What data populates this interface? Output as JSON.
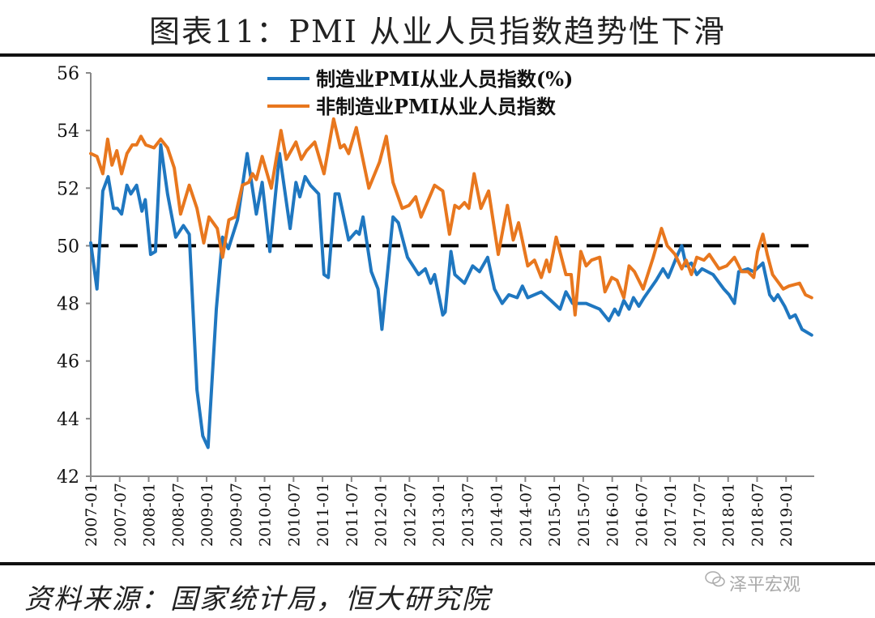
{
  "header": {
    "title": "图表11：PMI 从业人员指数趋势性下滑"
  },
  "footer": {
    "source": "资料来源：国家统计局，恒大研究院",
    "watermark": "泽平宏观"
  },
  "chart_data": {
    "type": "line",
    "title": "图表11：PMI 从业人员指数趋势性下滑",
    "xlabel": "",
    "ylabel": "",
    "x_unit": "months since 2007-01",
    "ylim": [
      42,
      56
    ],
    "yticks": [
      "42",
      "44",
      "46",
      "48",
      "50",
      "52",
      "54",
      "56"
    ],
    "xticks": [
      "2007-01",
      "2007-07",
      "2008-01",
      "2008-07",
      "2009-01",
      "2009-07",
      "2010-01",
      "2010-07",
      "2011-01",
      "2011-07",
      "2012-01",
      "2012-07",
      "2013-01",
      "2013-07",
      "2014-01",
      "2014-07",
      "2015-01",
      "2015-07",
      "2016-01",
      "2016-07",
      "2017-01",
      "2017-07",
      "2018-01",
      "2018-07",
      "2019-01"
    ],
    "reference_line": {
      "y": 50,
      "style": "dashed",
      "color": "#000000"
    },
    "legend_position": "top-center",
    "series": [
      {
        "name": "制造业PMI从业人员指数(%)",
        "color": "#1f77c0",
        "points": [
          [
            0,
            50.1
          ],
          [
            1.3,
            48.5
          ],
          [
            2.5,
            51.9
          ],
          [
            3.6,
            52.4
          ],
          [
            4.7,
            51.3
          ],
          [
            5.5,
            51.3
          ],
          [
            6.4,
            51.1
          ],
          [
            7.5,
            52.1
          ],
          [
            8.3,
            51.8
          ],
          [
            9.5,
            52.1
          ],
          [
            10.6,
            51.2
          ],
          [
            11.3,
            51.6
          ],
          [
            12.4,
            49.7
          ],
          [
            13.4,
            49.8
          ],
          [
            14.5,
            53.5
          ],
          [
            15.9,
            51.8
          ],
          [
            17.6,
            50.3
          ],
          [
            19.2,
            50.7
          ],
          [
            20.4,
            50.4
          ],
          [
            22,
            45.0
          ],
          [
            23.2,
            43.4
          ],
          [
            24.3,
            43.0
          ],
          [
            26,
            47.8
          ],
          [
            27.3,
            50.3
          ],
          [
            28.5,
            49.9
          ],
          [
            30.4,
            50.9
          ],
          [
            32.4,
            53.2
          ],
          [
            34.3,
            51.1
          ],
          [
            35.5,
            52.2
          ],
          [
            37.1,
            49.8
          ],
          [
            39.1,
            53.2
          ],
          [
            41.3,
            50.6
          ],
          [
            42.5,
            52.2
          ],
          [
            43.3,
            51.7
          ],
          [
            44.4,
            52.4
          ],
          [
            45.5,
            52.1
          ],
          [
            47.2,
            51.8
          ],
          [
            48.3,
            49.0
          ],
          [
            49.2,
            48.9
          ],
          [
            50.6,
            51.8
          ],
          [
            51.4,
            51.8
          ],
          [
            53.4,
            50.2
          ],
          [
            55,
            50.5
          ],
          [
            55.6,
            50.4
          ],
          [
            56.4,
            51.0
          ],
          [
            58.1,
            49.1
          ],
          [
            59.5,
            48.5
          ],
          [
            60.3,
            47.1
          ],
          [
            62.6,
            51.0
          ],
          [
            63.7,
            50.8
          ],
          [
            65.6,
            49.6
          ],
          [
            67.9,
            49.0
          ],
          [
            69.3,
            49.2
          ],
          [
            70.4,
            48.7
          ],
          [
            71.2,
            49.0
          ],
          [
            72.9,
            47.6
          ],
          [
            73.4,
            47.7
          ],
          [
            74.6,
            49.8
          ],
          [
            75.4,
            49.0
          ],
          [
            77.4,
            48.7
          ],
          [
            79.1,
            49.3
          ],
          [
            80.5,
            49.1
          ],
          [
            82.2,
            49.6
          ],
          [
            83.6,
            48.5
          ],
          [
            85.2,
            48.0
          ],
          [
            86.6,
            48.3
          ],
          [
            88.3,
            48.2
          ],
          [
            89.4,
            48.6
          ],
          [
            90.5,
            48.2
          ],
          [
            93.3,
            48.4
          ],
          [
            95.3,
            48.1
          ],
          [
            97.2,
            47.8
          ],
          [
            98.4,
            48.4
          ],
          [
            99.8,
            48.0
          ],
          [
            102.6,
            48.0
          ],
          [
            105.4,
            47.8
          ],
          [
            107.3,
            47.4
          ],
          [
            108.5,
            47.8
          ],
          [
            109.3,
            47.6
          ],
          [
            110.4,
            48.1
          ],
          [
            111.5,
            47.8
          ],
          [
            112.4,
            48.2
          ],
          [
            113.5,
            47.9
          ],
          [
            114.6,
            48.2
          ],
          [
            117.1,
            48.8
          ],
          [
            118.5,
            49.2
          ],
          [
            119.6,
            48.9
          ],
          [
            121.3,
            49.6
          ],
          [
            122.4,
            50.0
          ],
          [
            123.3,
            49.3
          ],
          [
            124.4,
            49.4
          ],
          [
            125.5,
            49.0
          ],
          [
            126.6,
            49.2
          ],
          [
            128.9,
            49.0
          ],
          [
            131.1,
            48.5
          ],
          [
            132.2,
            48.3
          ],
          [
            133.3,
            48.0
          ],
          [
            134.2,
            49.1
          ],
          [
            136.1,
            49.2
          ],
          [
            137.3,
            49.1
          ],
          [
            139.2,
            49.4
          ],
          [
            140.6,
            48.3
          ],
          [
            141.5,
            48.1
          ],
          [
            142.3,
            48.3
          ],
          [
            143.7,
            47.9
          ],
          [
            144.8,
            47.5
          ],
          [
            145.9,
            47.6
          ],
          [
            147.3,
            47.1
          ],
          [
            149.3,
            46.9
          ]
        ]
      },
      {
        "name": "非制造业PMI从业人员指数",
        "color": "#e8771e",
        "points": [
          [
            0,
            53.2
          ],
          [
            1.3,
            53.1
          ],
          [
            2.5,
            52.5
          ],
          [
            3.5,
            53.7
          ],
          [
            4.4,
            52.8
          ],
          [
            5.4,
            53.3
          ],
          [
            6.4,
            52.5
          ],
          [
            7.5,
            53.2
          ],
          [
            8.6,
            53.5
          ],
          [
            9.5,
            53.5
          ],
          [
            10.4,
            53.8
          ],
          [
            11.4,
            53.5
          ],
          [
            13.1,
            53.4
          ],
          [
            14.5,
            53.7
          ],
          [
            15.9,
            53.4
          ],
          [
            17.3,
            52.7
          ],
          [
            18.6,
            51.1
          ],
          [
            20.4,
            52.1
          ],
          [
            22,
            51.3
          ],
          [
            23.4,
            50.1
          ],
          [
            24.5,
            51.0
          ],
          [
            26.2,
            50.6
          ],
          [
            27.3,
            49.6
          ],
          [
            28.6,
            50.9
          ],
          [
            29.9,
            51.0
          ],
          [
            31.4,
            52.1
          ],
          [
            32.7,
            52.2
          ],
          [
            33.5,
            52.5
          ],
          [
            34.3,
            52.3
          ],
          [
            35.5,
            53.1
          ],
          [
            37.4,
            52.0
          ],
          [
            39.4,
            54.0
          ],
          [
            40.5,
            53.0
          ],
          [
            42.5,
            53.6
          ],
          [
            43.6,
            53.0
          ],
          [
            44.7,
            53.3
          ],
          [
            46.4,
            53.6
          ],
          [
            48.3,
            52.5
          ],
          [
            50.3,
            54.4
          ],
          [
            51.7,
            53.4
          ],
          [
            52.5,
            53.5
          ],
          [
            53.4,
            53.2
          ],
          [
            55,
            54.1
          ],
          [
            57.6,
            52.0
          ],
          [
            59.8,
            52.9
          ],
          [
            61.2,
            53.8
          ],
          [
            62.6,
            52.2
          ],
          [
            64.5,
            51.3
          ],
          [
            65.9,
            51.4
          ],
          [
            67.3,
            51.7
          ],
          [
            68.4,
            51.0
          ],
          [
            71.2,
            52.1
          ],
          [
            72.9,
            51.9
          ],
          [
            74.3,
            50.4
          ],
          [
            75.4,
            51.4
          ],
          [
            76.3,
            51.3
          ],
          [
            77.4,
            51.5
          ],
          [
            78.3,
            51.3
          ],
          [
            79.4,
            52.5
          ],
          [
            80.8,
            51.3
          ],
          [
            82.4,
            51.9
          ],
          [
            84.4,
            49.7
          ],
          [
            86.3,
            51.4
          ],
          [
            87.5,
            50.2
          ],
          [
            88.6,
            50.8
          ],
          [
            90.5,
            49.3
          ],
          [
            91.9,
            49.5
          ],
          [
            93.3,
            48.9
          ],
          [
            94.4,
            49.5
          ],
          [
            95.0,
            49.1
          ],
          [
            96.4,
            50.3
          ],
          [
            98.4,
            49.0
          ],
          [
            99.5,
            49.0
          ],
          [
            100.3,
            47.6
          ],
          [
            101.5,
            49.8
          ],
          [
            102.6,
            49.3
          ],
          [
            103.7,
            49.5
          ],
          [
            105.4,
            49.6
          ],
          [
            106.5,
            48.4
          ],
          [
            107.9,
            48.9
          ],
          [
            109.0,
            48.8
          ],
          [
            110.4,
            48.2
          ],
          [
            111.5,
            49.3
          ],
          [
            112.6,
            49.1
          ],
          [
            114.4,
            48.5
          ],
          [
            116.5,
            49.6
          ],
          [
            118.2,
            50.6
          ],
          [
            119.4,
            50.0
          ],
          [
            121.0,
            49.7
          ],
          [
            122.4,
            49.2
          ],
          [
            123.3,
            49.5
          ],
          [
            124.4,
            49.0
          ],
          [
            125.5,
            49.6
          ],
          [
            127.0,
            49.5
          ],
          [
            128.1,
            49.7
          ],
          [
            130.1,
            49.2
          ],
          [
            131.7,
            49.3
          ],
          [
            133.3,
            49.6
          ],
          [
            134.8,
            49.1
          ],
          [
            136.1,
            49.1
          ],
          [
            137.3,
            48.9
          ],
          [
            138.1,
            49.8
          ],
          [
            139.2,
            50.4
          ],
          [
            140.1,
            49.7
          ],
          [
            141.2,
            49.0
          ],
          [
            143.4,
            48.5
          ],
          [
            144.6,
            48.6
          ],
          [
            146.8,
            48.7
          ],
          [
            148.0,
            48.3
          ],
          [
            149.3,
            48.2
          ]
        ]
      }
    ]
  }
}
